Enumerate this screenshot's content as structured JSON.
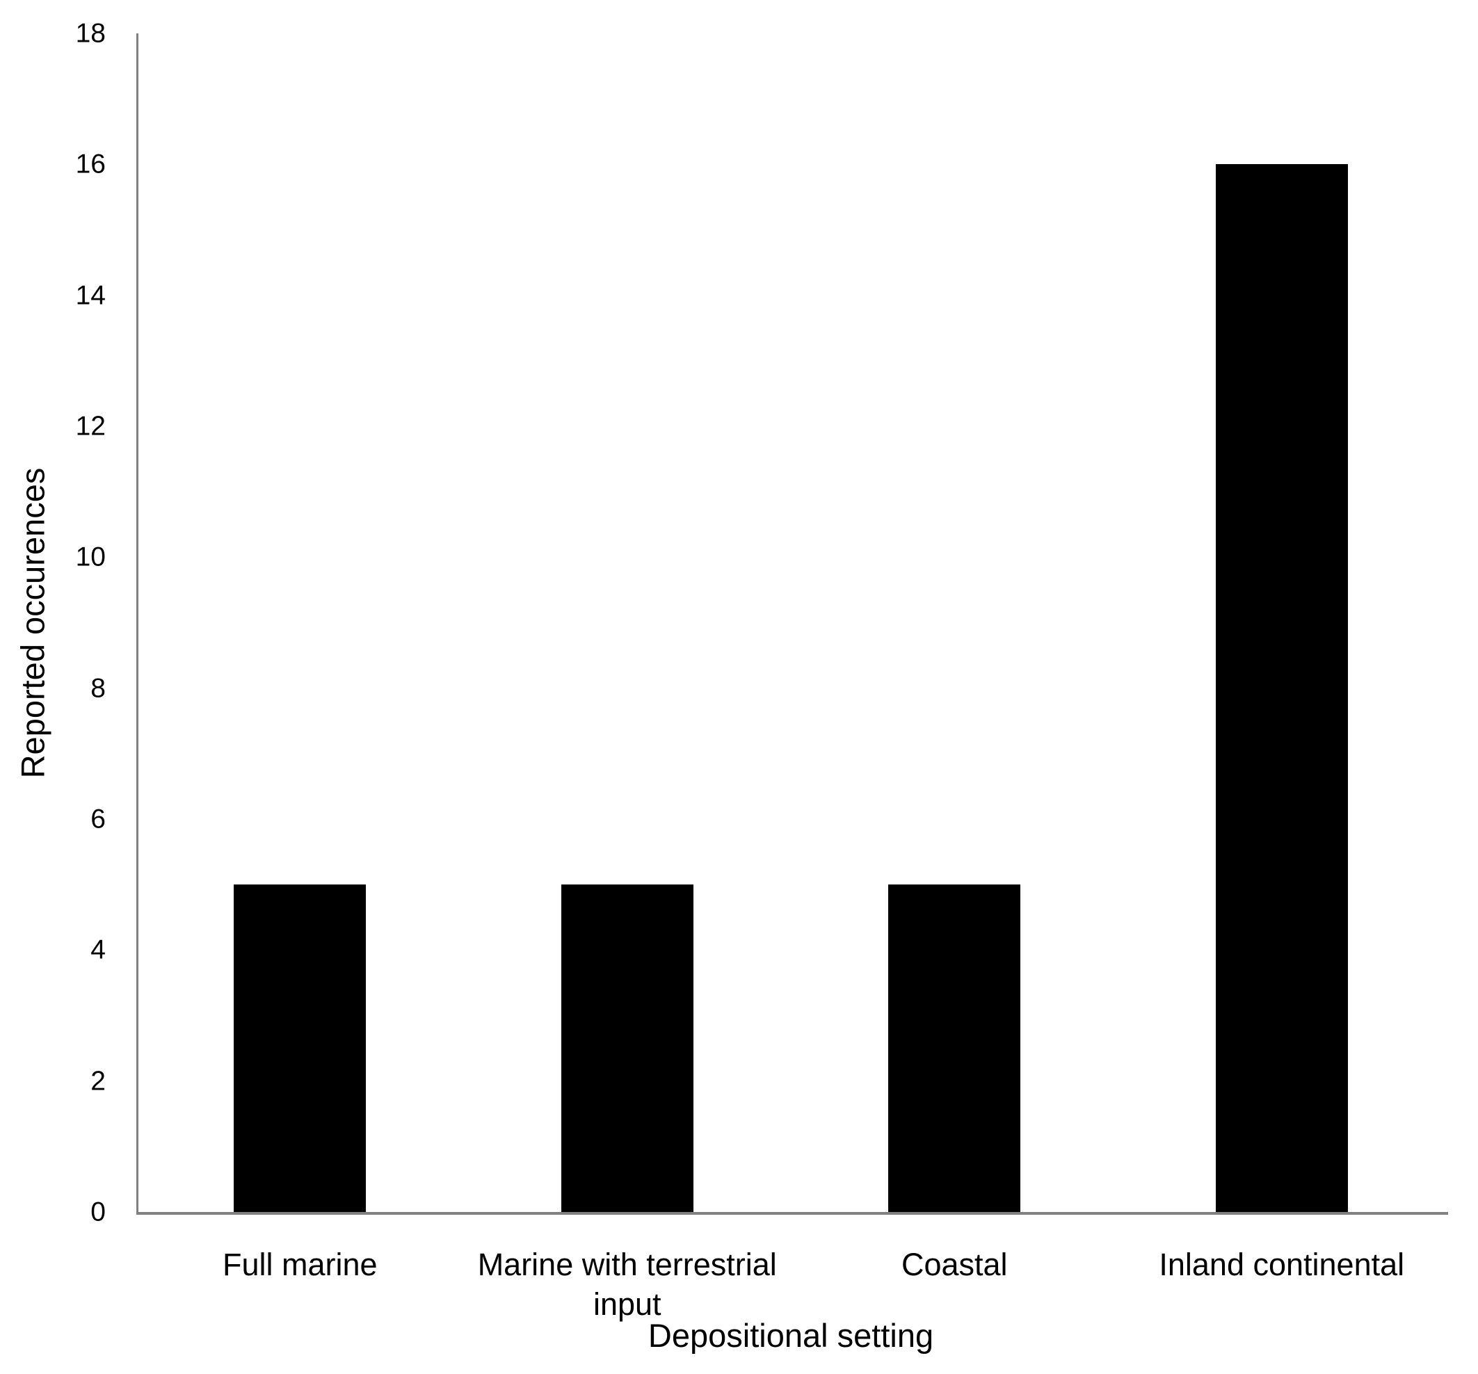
{
  "chart_data": {
    "type": "bar",
    "title": "",
    "categories": [
      "Full marine",
      "Marine with terrestrial input",
      "Coastal",
      "Inland continental"
    ],
    "values": [
      5,
      5,
      5,
      16
    ],
    "xlabel": "Depositional setting",
    "ylabel": "Reported occurences",
    "ylim": [
      0,
      18
    ],
    "ytick_step": 2,
    "yticks": [
      0,
      2,
      4,
      6,
      8,
      10,
      12,
      14,
      16,
      18
    ],
    "grid": false,
    "legend": "none",
    "bar_color": "#000000",
    "axis_color": "#808080",
    "text_color": "#000000",
    "background_color": "#ffffff"
  }
}
